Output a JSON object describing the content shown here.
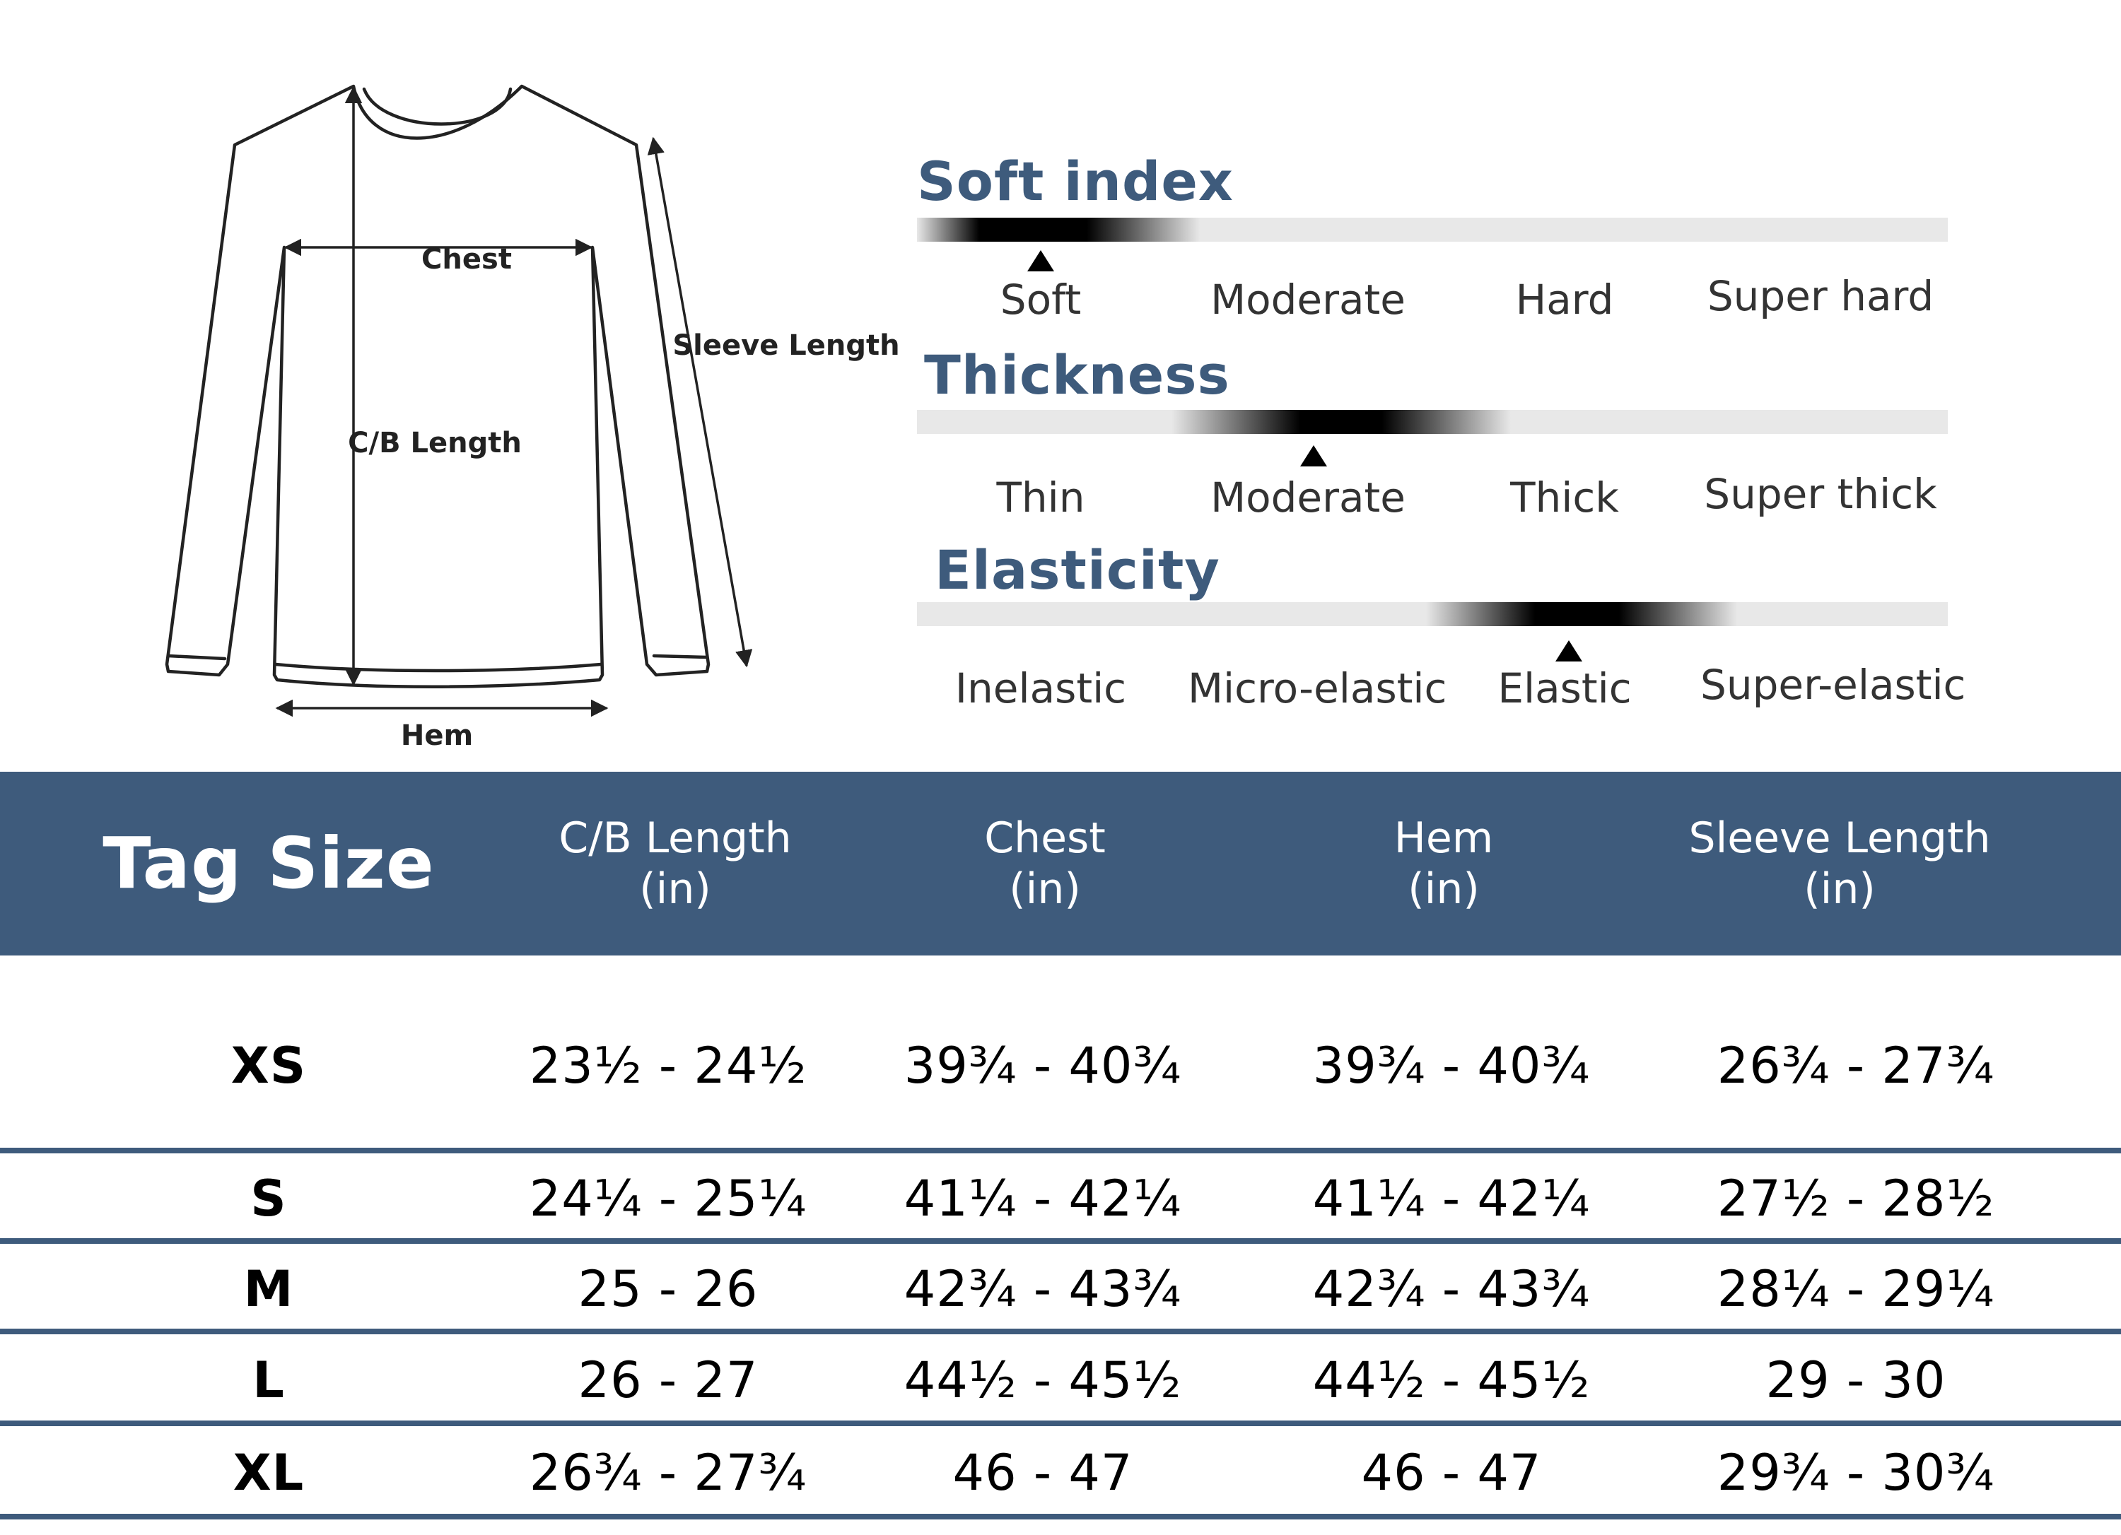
{
  "diagram": {
    "labels": {
      "chest": "Chest",
      "cb_length": "C/B Length",
      "sleeve_length": "Sleeve Length",
      "hem": "Hem"
    }
  },
  "scales": [
    {
      "title": "Soft index",
      "options": [
        "Soft",
        "Moderate",
        "Hard",
        "Super hard"
      ],
      "selected_index": 0
    },
    {
      "title": "Thickness",
      "options": [
        "Thin",
        "Moderate",
        "Thick",
        "Super thick"
      ],
      "selected_index": 1
    },
    {
      "title": "Elasticity",
      "options": [
        "Inelastic",
        "Micro-elastic",
        "Elastic",
        "Super-elastic"
      ],
      "selected_index": 2
    }
  ],
  "table": {
    "header": {
      "tag_size": "Tag Size",
      "columns": [
        {
          "name": "C/B Length",
          "unit": "(in)"
        },
        {
          "name": "Chest",
          "unit": "(in)"
        },
        {
          "name": "Hem",
          "unit": "(in)"
        },
        {
          "name": "Sleeve Length",
          "unit": "(in)"
        }
      ]
    },
    "rows": [
      {
        "size": "XS",
        "values": [
          "23½ - 24½",
          "39¾ - 40¾",
          "39¾ - 40¾",
          "26¾ - 27¾"
        ]
      },
      {
        "size": "S",
        "values": [
          "24¼ - 25¼",
          "41¼ - 42¼",
          "41¼ - 42¼",
          "27½ - 28½"
        ]
      },
      {
        "size": "M",
        "values": [
          "25 - 26",
          "42¾ - 43¾",
          "42¾ - 43¾",
          "28¼ - 29¼"
        ]
      },
      {
        "size": "L",
        "values": [
          "26 - 27",
          "44½ - 45½",
          "44½ - 45½",
          "29 - 30"
        ]
      },
      {
        "size": "XL",
        "values": [
          "26¾ - 27¾",
          "46 - 47",
          "46 - 47",
          "29¾ - 30¾"
        ]
      }
    ]
  },
  "colors": {
    "accent": "#3e5b7c",
    "bar_track": "#e8e8e8",
    "text": "#000000"
  }
}
